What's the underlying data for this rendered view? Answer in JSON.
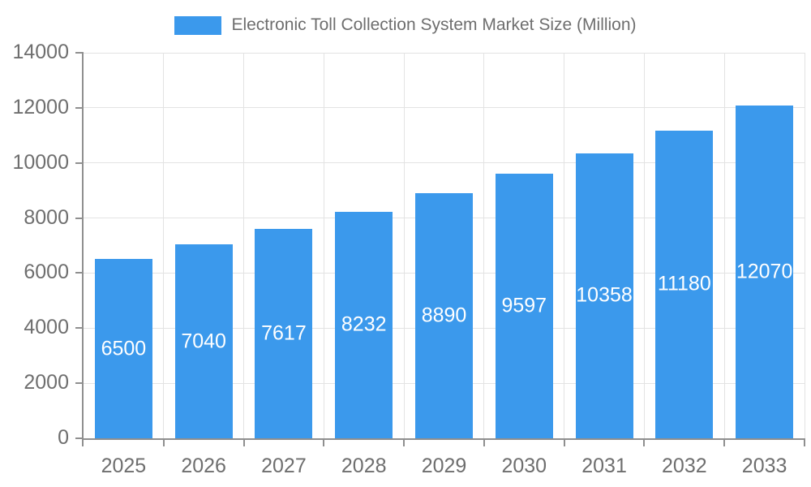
{
  "chart_data": {
    "type": "bar",
    "title": "Electronic Toll Collection System Market Size (Million)",
    "categories": [
      "2025",
      "2026",
      "2027",
      "2028",
      "2029",
      "2030",
      "2031",
      "2032",
      "2033"
    ],
    "values": [
      6500,
      7040,
      7617,
      8232,
      8890,
      9597,
      10358,
      11180,
      12070
    ],
    "xlabel": "",
    "ylabel": "",
    "ylim": [
      0,
      14000
    ],
    "ytick_step": 2000,
    "ytick_labels": [
      "0",
      "2000",
      "4000",
      "6000",
      "8000",
      "10000",
      "12000",
      "14000"
    ],
    "grid": true,
    "legend_position": "top",
    "value_label_position": "inside-center",
    "colors": {
      "bar": "#3B99EC",
      "bar_value_label": "#FFFFFF",
      "axis_label": "#6E6E6E",
      "axis_line": "#8F8F8F",
      "grid_line": "#E3E3E3",
      "legend_text": "#6E6E6E",
      "background": "#FFFFFF"
    }
  }
}
